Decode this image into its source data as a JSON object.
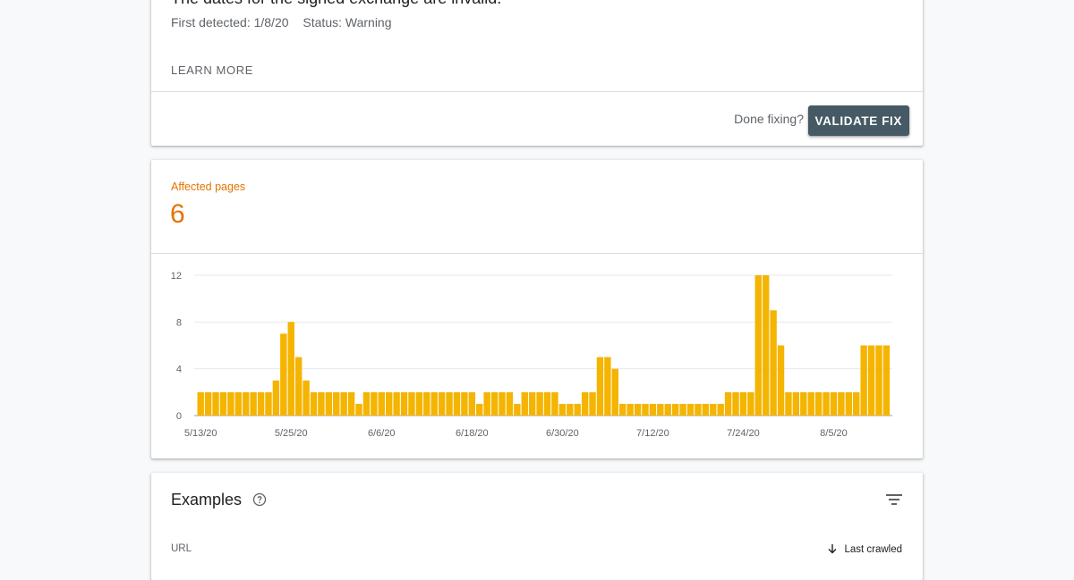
{
  "issue": {
    "title": "The dates for the signed exchange are invalid.",
    "first_detected_label": "First detected: 1/8/20",
    "status_label": "Status: Warning",
    "learn_more": "LEARN MORE",
    "done_fixing": "Done fixing?",
    "validate_fix": "VALIDATE FIX"
  },
  "summary": {
    "affected_label": "Affected pages",
    "affected_value": "6"
  },
  "chart_data": {
    "type": "bar",
    "color": "#f4b400",
    "x_tick_labels": [
      "5/13/20",
      "5/25/20",
      "6/6/20",
      "6/18/20",
      "6/30/20",
      "7/12/20",
      "7/24/20",
      "8/5/20"
    ],
    "y_ticks": [
      0,
      4,
      8,
      12
    ],
    "ylim": [
      0,
      12
    ],
    "grid": true,
    "values": [
      2,
      2,
      2,
      2,
      2,
      2,
      2,
      2,
      2,
      2,
      3,
      7,
      8,
      5,
      3,
      2,
      2,
      2,
      2,
      2,
      2,
      1,
      2,
      2,
      2,
      2,
      2,
      2,
      2,
      2,
      2,
      2,
      2,
      2,
      2,
      2,
      2,
      1,
      2,
      2,
      2,
      2,
      1,
      2,
      2,
      2,
      2,
      2,
      1,
      1,
      1,
      2,
      2,
      5,
      5,
      4,
      1,
      1,
      1,
      1,
      1,
      1,
      1,
      1,
      1,
      1,
      1,
      1,
      1,
      1,
      2,
      2,
      2,
      2,
      12,
      12,
      9,
      6,
      2,
      2,
      2,
      2,
      2,
      2,
      2,
      2,
      2,
      2,
      6,
      6,
      6,
      6
    ]
  },
  "examples": {
    "title": "Examples",
    "col_url": "URL",
    "col_last_crawled": "Last crawled"
  },
  "icons": {
    "help": "help-circle-icon",
    "filter": "filter-icon",
    "sort": "arrow-down-icon"
  }
}
